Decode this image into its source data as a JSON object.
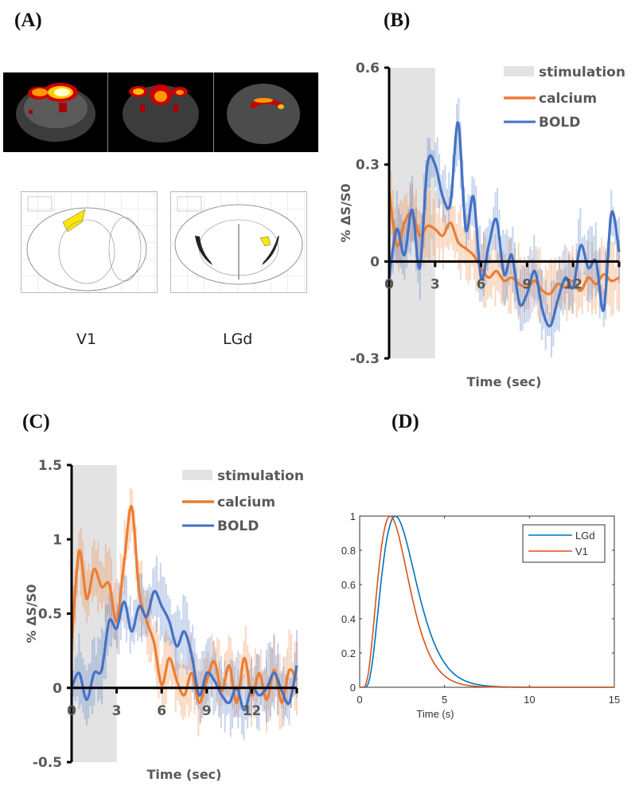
{
  "panels": {
    "a": {
      "label": "(A)",
      "regions": [
        "V1",
        "LGd"
      ]
    },
    "b": {
      "label": "(B)"
    },
    "c": {
      "label": "(C)"
    },
    "d": {
      "label": "(D)"
    }
  },
  "colors": {
    "calcium": "#ED7D31",
    "bold": "#4472C4",
    "stimulation": "#E3E3E3",
    "lgd": "#0072BD",
    "v1": "#D95319",
    "atlas_highlight": "#FFE600"
  },
  "chart_data": [
    {
      "id": "B",
      "type": "line",
      "title": "",
      "xlabel": "Time (sec)",
      "ylabel": "% ΔS/S0",
      "xlim": [
        0,
        15
      ],
      "ylim": [
        -0.3,
        0.6
      ],
      "xticks": [
        0,
        3,
        6,
        9,
        12
      ],
      "yticks": [
        -0.3,
        0,
        0.3,
        0.6
      ],
      "ytick_labels": [
        "-0.3",
        "0",
        "0.3",
        "0.6"
      ],
      "shaded_region": {
        "name": "stimulation",
        "x": [
          0,
          3
        ]
      },
      "legend": [
        "stimulation",
        "calcium",
        "BOLD"
      ],
      "legend_position": "top-right",
      "x": [
        0,
        0.5,
        1,
        1.5,
        2,
        2.5,
        3,
        3.5,
        4,
        4.5,
        5,
        5.5,
        6,
        6.5,
        7,
        7.5,
        8,
        8.5,
        9,
        9.5,
        10,
        10.5,
        11,
        11.5,
        12,
        12.5,
        13,
        13.5,
        14,
        14.5,
        15
      ],
      "series": [
        {
          "name": "calcium",
          "values": [
            0.22,
            0.05,
            0.12,
            0.15,
            0.08,
            0.11,
            0.1,
            0.08,
            0.12,
            0.06,
            0.04,
            0.02,
            -0.02,
            -0.05,
            -0.03,
            -0.06,
            -0.05,
            -0.07,
            -0.08,
            -0.06,
            -0.09,
            -0.1,
            -0.07,
            -0.08,
            -0.06,
            -0.09,
            -0.05,
            -0.07,
            -0.04,
            -0.06,
            -0.05
          ]
        },
        {
          "name": "BOLD",
          "values": [
            -0.05,
            0.1,
            0.02,
            0.16,
            -0.02,
            0.3,
            0.3,
            0.2,
            0.18,
            0.43,
            0.1,
            0.2,
            -0.05,
            0.05,
            0.13,
            -0.04,
            0.02,
            -0.13,
            -0.1,
            -0.03,
            -0.15,
            -0.2,
            -0.12,
            -0.05,
            -0.08,
            0.05,
            -0.02,
            0.0,
            -0.15,
            0.15,
            0.03
          ]
        }
      ]
    },
    {
      "id": "C",
      "type": "line",
      "title": "",
      "xlabel": "Time (sec)",
      "ylabel": "% ΔS/S0",
      "xlim": [
        0,
        15
      ],
      "ylim": [
        -0.5,
        1.5
      ],
      "xticks": [
        0,
        3,
        6,
        9,
        12
      ],
      "yticks": [
        -0.5,
        0,
        0.5,
        1,
        1.5
      ],
      "ytick_labels": [
        "-0.5",
        "0",
        "0.5",
        "1",
        "1.5"
      ],
      "shaded_region": {
        "name": "stimulation",
        "x": [
          0,
          3
        ]
      },
      "legend": [
        "stimulation",
        "calcium",
        "BOLD"
      ],
      "legend_position": "top-right",
      "x": [
        0,
        0.5,
        1,
        1.5,
        2,
        2.5,
        3,
        3.5,
        4,
        4.5,
        5,
        5.5,
        6,
        6.5,
        7,
        7.5,
        8,
        8.5,
        9,
        9.5,
        10,
        10.5,
        11,
        11.5,
        12,
        12.5,
        13,
        13.5,
        14,
        14.5,
        15
      ],
      "series": [
        {
          "name": "calcium",
          "values": [
            0.3,
            0.92,
            0.6,
            0.8,
            0.68,
            0.7,
            0.45,
            0.85,
            1.22,
            0.65,
            0.45,
            0.3,
            0.02,
            0.2,
            0.05,
            -0.05,
            0.1,
            -0.1,
            0.05,
            0.18,
            -0.02,
            0.15,
            -0.1,
            0.2,
            -0.05,
            0.1,
            -0.08,
            0.12,
            -0.1,
            0.12,
            0.05
          ]
        },
        {
          "name": "BOLD",
          "values": [
            0.0,
            0.1,
            -0.08,
            0.1,
            0.12,
            0.45,
            0.4,
            0.58,
            0.38,
            0.55,
            0.48,
            0.65,
            0.55,
            0.45,
            0.28,
            0.38,
            0.22,
            -0.05,
            0.1,
            0.05,
            -0.05,
            -0.1,
            0.0,
            -0.15,
            0.0,
            -0.05,
            0.0,
            0.1,
            -0.02,
            -0.1,
            0.15
          ]
        }
      ]
    },
    {
      "id": "D",
      "type": "line",
      "title": "",
      "xlabel": "Time (s)",
      "ylabel": "",
      "xlim": [
        0,
        15
      ],
      "ylim": [
        0,
        1
      ],
      "xticks": [
        0,
        5,
        10,
        15
      ],
      "yticks": [
        0,
        0.2,
        0.4,
        0.6,
        0.8,
        1
      ],
      "ytick_labels": [
        "0",
        "0.2",
        "0.4",
        "0.6",
        "0.8",
        "1"
      ],
      "legend": [
        "LGd",
        "V1"
      ],
      "legend_position": "top-right",
      "series": [
        {
          "name": "LGd",
          "peak_time": 2.1,
          "peak_value": 1.0,
          "onset": 0.3,
          "decays_to_zero_by": 7.0
        },
        {
          "name": "V1",
          "peak_time": 1.8,
          "peak_value": 1.0,
          "onset": 0.2,
          "decays_to_zero_by": 6.0
        }
      ]
    }
  ]
}
